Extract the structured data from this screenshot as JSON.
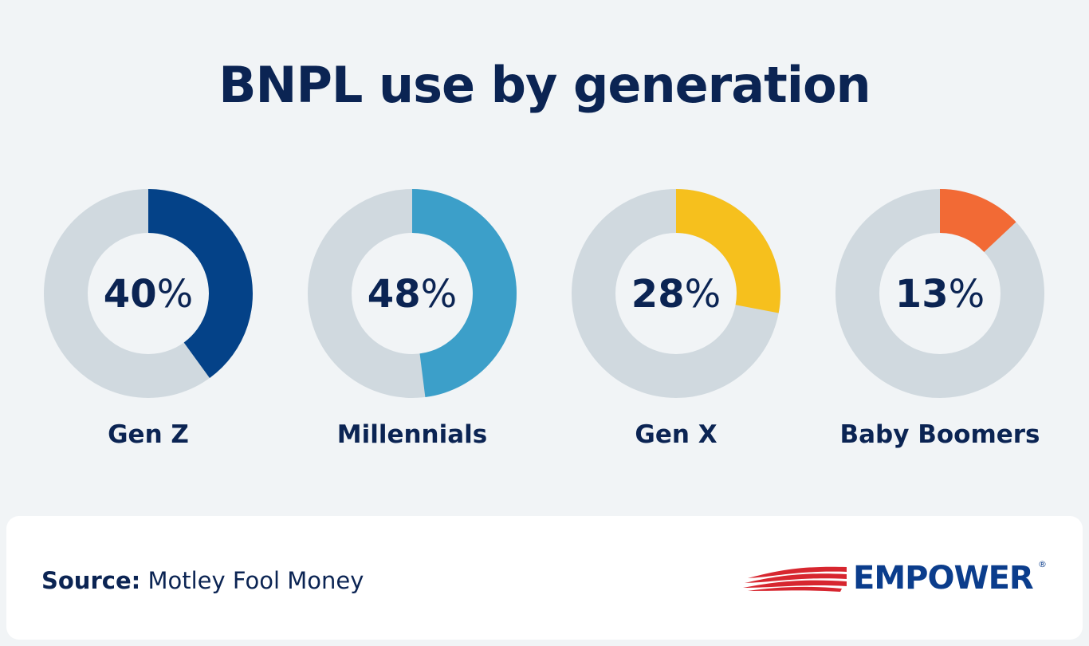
{
  "title": "BNPL use by generation",
  "chart_data": {
    "type": "pie",
    "title": "BNPL use by generation",
    "charts": [
      {
        "category": "Gen Z",
        "value": 40,
        "color": "#044288"
      },
      {
        "category": "Millennials",
        "value": 48,
        "color": "#3c9fc9"
      },
      {
        "category": "Gen X",
        "value": 28,
        "color": "#f6c01d"
      },
      {
        "category": "Baby Boomers",
        "value": 13,
        "color": "#f26a35"
      }
    ],
    "unit": "%",
    "track_color": "#d0d9df"
  },
  "footer": {
    "source_label": "Source:",
    "source_text": "Motley Fool Money"
  },
  "logo": {
    "name": "EMPOWER",
    "reg_mark": "®",
    "icon": "flag-stripes-icon",
    "colors": {
      "stripes": "#d7262f",
      "text": "#0b3d8c"
    }
  }
}
